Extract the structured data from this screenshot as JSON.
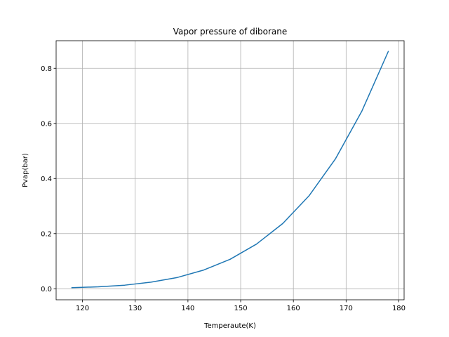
{
  "chart_data": {
    "type": "line",
    "title": "Vapor pressure of diborane",
    "xlabel": "Temperaute(K)",
    "ylabel": "Pvap(bar)",
    "xlim": [
      115,
      181
    ],
    "ylim": [
      -0.04,
      0.9
    ],
    "xticks": [
      120,
      130,
      140,
      150,
      160,
      170,
      180
    ],
    "yticks": [
      0.0,
      0.2,
      0.4,
      0.6,
      0.8
    ],
    "ytick_labels": [
      "0.0",
      "0.2",
      "0.4",
      "0.6",
      "0.8"
    ],
    "grid": true,
    "series": [
      {
        "color": "#1f77b4",
        "x": [
          118,
          123,
          128,
          133,
          138,
          143,
          148,
          153,
          158,
          163,
          168,
          173,
          178
        ],
        "y": [
          0.004,
          0.007,
          0.013,
          0.024,
          0.041,
          0.068,
          0.107,
          0.162,
          0.237,
          0.338,
          0.472,
          0.645,
          0.861
        ]
      }
    ]
  }
}
